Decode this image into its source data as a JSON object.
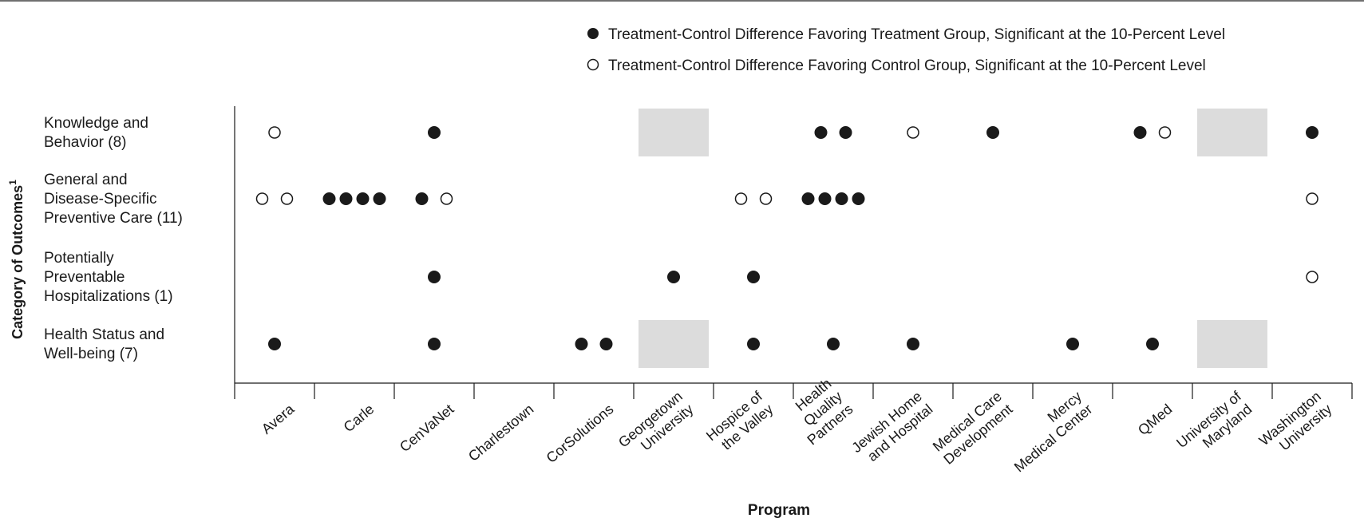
{
  "chart_data": {
    "type": "scatter",
    "xlabel": "Program",
    "ylabel": "Category of Outcomes",
    "ylabel_sup": "1",
    "legend": [
      {
        "name": "Treatment-Control Difference Favoring Treatment Group, Significant at the 10-Percent Level",
        "marker": "filled"
      },
      {
        "name": "Treatment-Control Difference Favoring Control Group, Significant at the 10-Percent Level",
        "marker": "open"
      }
    ],
    "categories": [
      [
        "Avera"
      ],
      [
        "Carle"
      ],
      [
        "CenVaNet"
      ],
      [
        "Charlestown"
      ],
      [
        "CorSolutions"
      ],
      [
        "Georgetown",
        "University"
      ],
      [
        "Hospice of",
        "the Valley"
      ],
      [
        "Health",
        "Quality",
        "Partners"
      ],
      [
        "Jewish Home",
        "and Hospital"
      ],
      [
        "Medical Care",
        "Development"
      ],
      [
        "Mercy",
        "Medical Center"
      ],
      [
        "QMed"
      ],
      [
        "University of",
        "Maryland"
      ],
      [
        "Washington",
        "University"
      ]
    ],
    "rows": [
      {
        "label": [
          "Knowledge and",
          "Behavior (8)"
        ]
      },
      {
        "label": [
          "General and",
          "Disease-Specific",
          "Preventive Care (11)"
        ]
      },
      {
        "label": [
          "Potentially",
          "Preventable",
          "Hospitalizations (1)"
        ]
      },
      {
        "label": [
          "Health Status and",
          "Well-being (7)"
        ]
      }
    ],
    "not_applicable": [
      {
        "program": 5,
        "row": 0
      },
      {
        "program": 5,
        "row": 3
      },
      {
        "program": 12,
        "row": 0
      },
      {
        "program": 12,
        "row": 3
      }
    ],
    "markers": [
      {
        "program": 0,
        "row": 0,
        "marker": "open"
      },
      {
        "program": 2,
        "row": 0,
        "marker": "filled"
      },
      {
        "program": 7,
        "row": 0,
        "marker": "filled"
      },
      {
        "program": 7,
        "row": 0,
        "marker": "filled"
      },
      {
        "program": 8,
        "row": 0,
        "marker": "open"
      },
      {
        "program": 9,
        "row": 0,
        "marker": "filled"
      },
      {
        "program": 11,
        "row": 0,
        "marker": "filled"
      },
      {
        "program": 11,
        "row": 0,
        "marker": "open"
      },
      {
        "program": 13,
        "row": 0,
        "marker": "filled"
      },
      {
        "program": 0,
        "row": 1,
        "marker": "open"
      },
      {
        "program": 0,
        "row": 1,
        "marker": "open"
      },
      {
        "program": 1,
        "row": 1,
        "marker": "filled"
      },
      {
        "program": 1,
        "row": 1,
        "marker": "filled"
      },
      {
        "program": 1,
        "row": 1,
        "marker": "filled"
      },
      {
        "program": 1,
        "row": 1,
        "marker": "filled"
      },
      {
        "program": 2,
        "row": 1,
        "marker": "filled"
      },
      {
        "program": 2,
        "row": 1,
        "marker": "open"
      },
      {
        "program": 6,
        "row": 1,
        "marker": "open"
      },
      {
        "program": 6,
        "row": 1,
        "marker": "open"
      },
      {
        "program": 7,
        "row": 1,
        "marker": "filled"
      },
      {
        "program": 7,
        "row": 1,
        "marker": "filled"
      },
      {
        "program": 7,
        "row": 1,
        "marker": "filled"
      },
      {
        "program": 7,
        "row": 1,
        "marker": "filled"
      },
      {
        "program": 13,
        "row": 1,
        "marker": "open"
      },
      {
        "program": 2,
        "row": 2,
        "marker": "filled"
      },
      {
        "program": 5,
        "row": 2,
        "marker": "filled"
      },
      {
        "program": 6,
        "row": 2,
        "marker": "filled"
      },
      {
        "program": 13,
        "row": 2,
        "marker": "open"
      },
      {
        "program": 0,
        "row": 3,
        "marker": "filled"
      },
      {
        "program": 2,
        "row": 3,
        "marker": "filled"
      },
      {
        "program": 4,
        "row": 3,
        "marker": "filled"
      },
      {
        "program": 4,
        "row": 3,
        "marker": "filled"
      },
      {
        "program": 6,
        "row": 3,
        "marker": "filled"
      },
      {
        "program": 7,
        "row": 3,
        "marker": "filled"
      },
      {
        "program": 8,
        "row": 3,
        "marker": "filled"
      },
      {
        "program": 10,
        "row": 3,
        "marker": "filled"
      },
      {
        "program": 11,
        "row": 3,
        "marker": "filled"
      }
    ],
    "colors": {
      "marker": "#1a1a1a",
      "na_box": "#dcdcdc",
      "axis": "#1a1a1a"
    }
  }
}
